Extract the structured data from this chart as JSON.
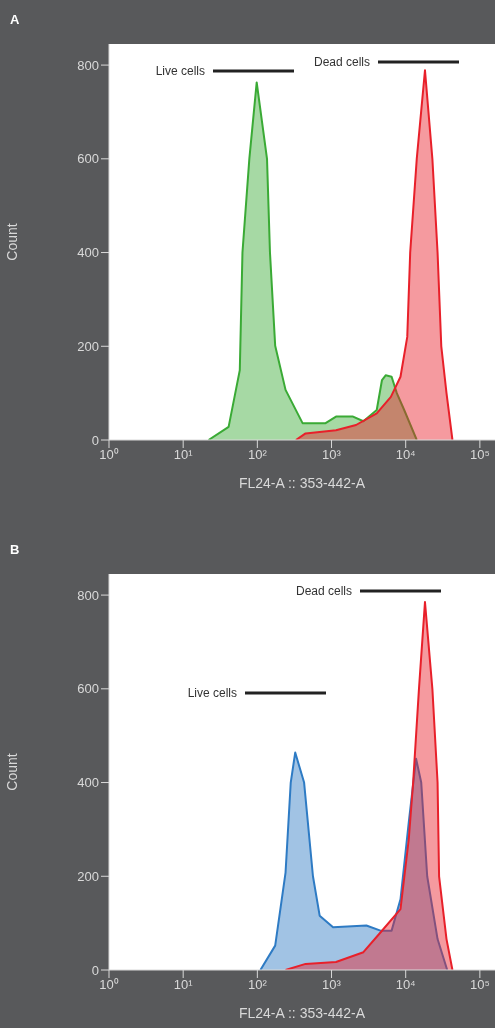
{
  "chart_data": [
    {
      "type": "area",
      "title": "A",
      "xlabel": "FL24-A :: 353-442-A",
      "ylabel": "Count",
      "log": "x",
      "xlim": [
        1,
        160000
      ],
      "ylim": [
        0,
        845
      ],
      "xticks": [
        {
          "value": 1,
          "label": "10⁰"
        },
        {
          "value": 10,
          "label": "10¹"
        },
        {
          "value": 100,
          "label": "10²"
        },
        {
          "value": 1000,
          "label": "10³"
        },
        {
          "value": 10000,
          "label": "10⁴"
        },
        {
          "value": 100000,
          "label": "10⁵"
        }
      ],
      "yticks": [
        0,
        200,
        400,
        600,
        800
      ],
      "grid": false,
      "legend": false,
      "annotations": [
        "Live cells",
        "Dead cells"
      ],
      "series": [
        {
          "color": "#3aaa35",
          "x": [
            22,
            41,
            58,
            63,
            78,
            98,
            135,
            148,
            174,
            240,
            407,
            832,
            1150,
            1950,
            2690,
            4070,
            4790,
            5370,
            6460,
            7590,
            9550,
            14100
          ],
          "values": [
            0,
            28,
            149,
            400,
            600,
            763,
            600,
            400,
            201,
            107,
            36,
            36,
            50,
            50,
            40,
            64,
            128,
            138,
            135,
            100,
            64,
            0
          ]
        },
        {
          "color": "#e8202a",
          "x": [
            331,
            447,
            1150,
            2140,
            4070,
            6310,
            8510,
            10500,
            11500,
            14100,
            18200,
            22900,
            26900,
            30200,
            35500,
            42700
          ],
          "values": [
            0,
            14,
            21,
            32,
            57,
            92,
            135,
            220,
            400,
            600,
            789,
            600,
            400,
            200,
            100,
            0
          ]
        }
      ]
    },
    {
      "type": "area",
      "title": "B",
      "xlabel": "FL24-A :: 353-442-A",
      "ylabel": "Count",
      "log": "x",
      "xlim": [
        1,
        160000
      ],
      "ylim": [
        0,
        845
      ],
      "xticks": [
        {
          "value": 1,
          "label": "10⁰"
        },
        {
          "value": 10,
          "label": "10¹"
        },
        {
          "value": 100,
          "label": "10²"
        },
        {
          "value": 1000,
          "label": "10³"
        },
        {
          "value": 10000,
          "label": "10⁴"
        },
        {
          "value": 100000,
          "label": "10⁵"
        }
      ],
      "yticks": [
        0,
        200,
        400,
        600,
        800
      ],
      "grid": false,
      "legend": false,
      "annotations": [
        "Live cells",
        "Dead cells"
      ],
      "series": [
        {
          "color": "#2e7bc4",
          "x": [
            110,
            174,
            240,
            282,
            324,
            427,
            562,
            692,
            1050,
            2950,
            4570,
            6460,
            8510,
            11000,
            13800,
            16200,
            19500,
            26900,
            36300
          ],
          "values": [
            0,
            52,
            208,
            400,
            464,
            400,
            200,
            116,
            91,
            95,
            84,
            84,
            151,
            315,
            451,
            400,
            200,
            66,
            0
          ]
        },
        {
          "color": "#e8202a",
          "x": [
            240,
            447,
            1150,
            2690,
            4570,
            8510,
            11000,
            12600,
            15100,
            18200,
            22900,
            26900,
            28200,
            35500,
            42700
          ],
          "values": [
            0,
            13,
            17,
            38,
            80,
            130,
            279,
            400,
            600,
            785,
            600,
            400,
            200,
            66,
            0
          ]
        }
      ]
    }
  ]
}
